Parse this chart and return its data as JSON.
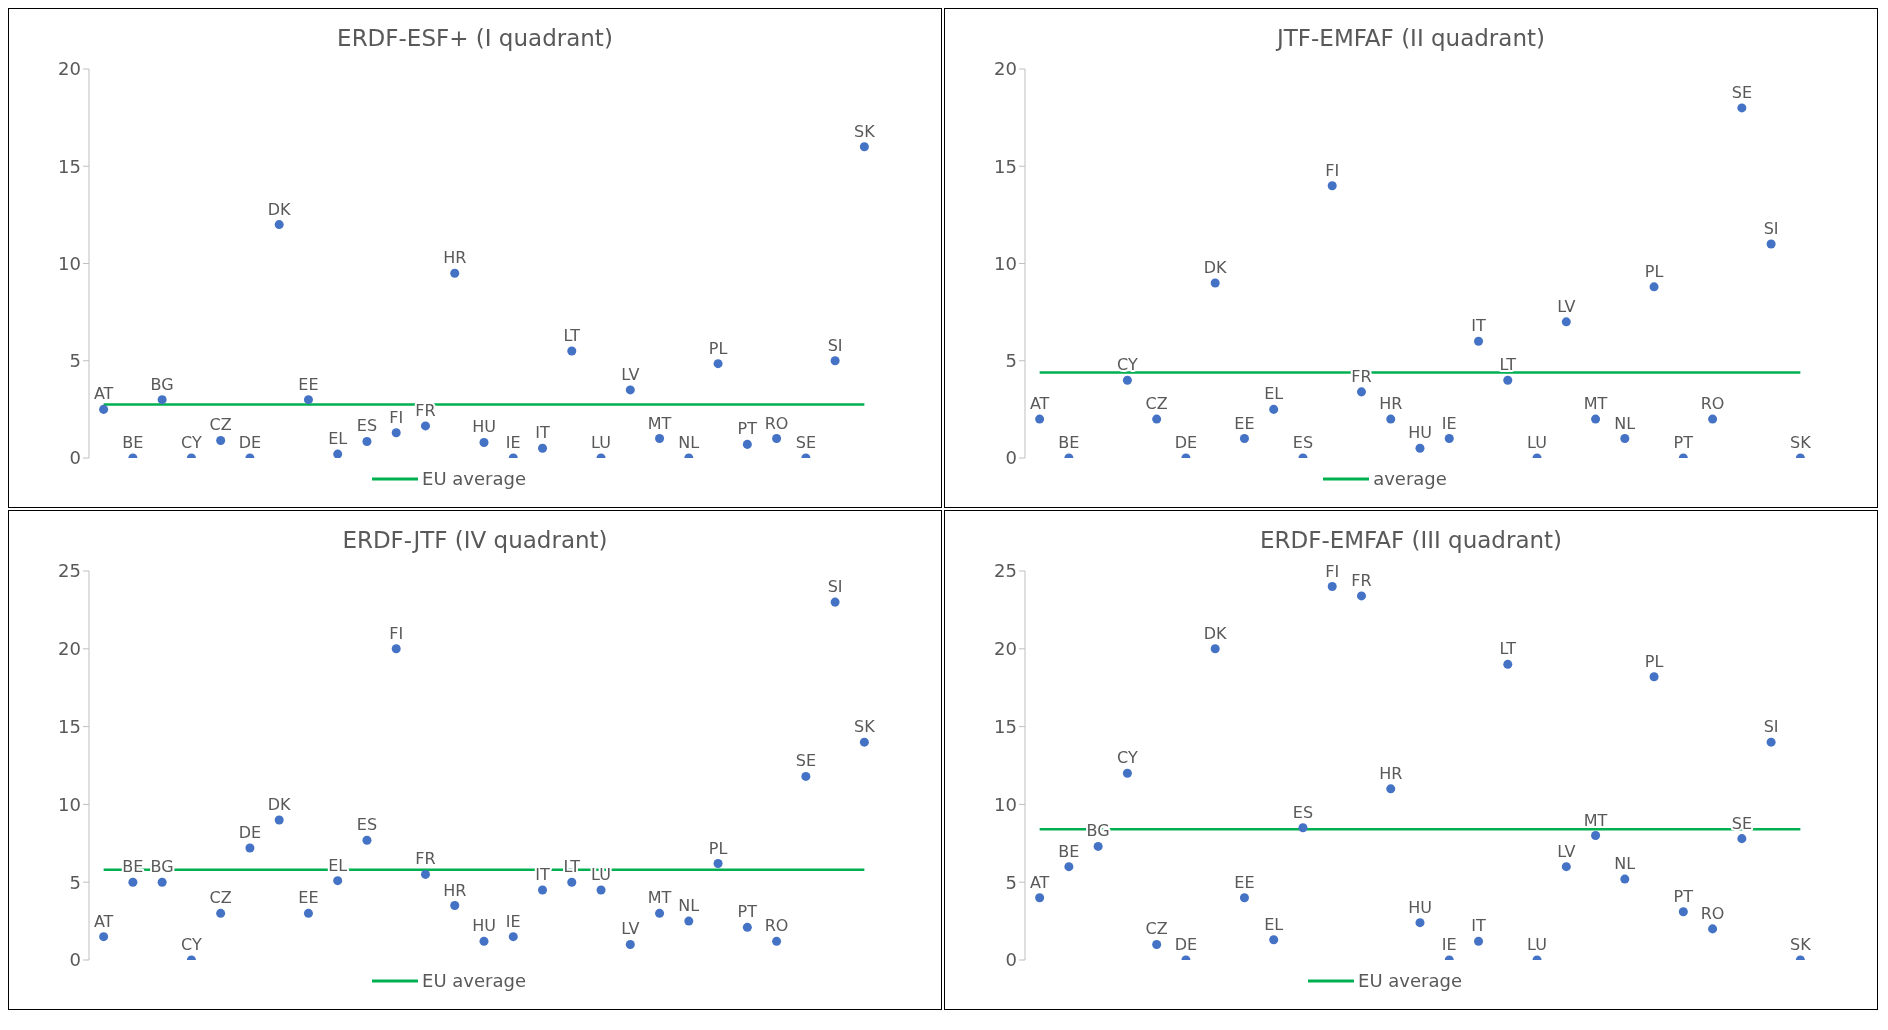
{
  "chart_data": [
    {
      "type": "scatter",
      "title": "ERDF-ESF+ (I quadrant)",
      "categories": [
        "AT",
        "BE",
        "BG",
        "CY",
        "CZ",
        "DE",
        "DK",
        "EE",
        "EL",
        "ES",
        "FI",
        "FR",
        "HR",
        "HU",
        "IE",
        "IT",
        "LT",
        "LU",
        "LV",
        "MT",
        "NL",
        "PL",
        "PT",
        "RO",
        "SE",
        "SI",
        "SK"
      ],
      "ylim": [
        0,
        20
      ],
      "yticks": [
        0,
        5,
        10,
        15,
        20
      ],
      "marker": "circle",
      "legend": "bottom",
      "tick_labels": "y",
      "series": [
        {
          "color": "#4472c4",
          "values": [
            2.5,
            0,
            3,
            0,
            0.9,
            0,
            12,
            3,
            0.2,
            0.85,
            1.3,
            1.65,
            9.5,
            0.8,
            0,
            0.5,
            5.5,
            0,
            3.5,
            1,
            0,
            4.85,
            0.7,
            1,
            0,
            5,
            16
          ]
        },
        {
          "type": "line",
          "name": "EU average",
          "marker": "none",
          "color": "#00b050",
          "values": [
            2.75,
            2.75,
            2.75,
            2.75,
            2.75,
            2.75,
            2.75,
            2.75,
            2.75,
            2.75,
            2.75,
            2.75,
            2.75,
            2.75,
            2.75,
            2.75,
            2.75,
            2.75,
            2.75,
            2.75,
            2.75,
            2.75,
            2.75,
            2.75,
            2.75,
            2.75,
            2.75
          ]
        }
      ]
    },
    {
      "type": "scatter",
      "title": "JTF-EMFAF (II quadrant)",
      "categories": [
        "AT",
        "BE",
        null,
        "CY",
        "CZ",
        "DE",
        "DK",
        "EE",
        "EL",
        "ES",
        "FI",
        "FR",
        "HR",
        "HU",
        "IE",
        "IT",
        "LT",
        "LU",
        "LV",
        "MT",
        "NL",
        "PL",
        "PT",
        "RO",
        "SE",
        "SI",
        "SK"
      ],
      "ylim": [
        0,
        20
      ],
      "yticks": [
        0,
        5,
        10,
        15,
        20
      ],
      "marker": "circle",
      "legend": "bottom",
      "tick_labels": "y",
      "series": [
        {
          "color": "#4472c4",
          "values": [
            2,
            0,
            null,
            4,
            2,
            0,
            9,
            1,
            2.5,
            0,
            14,
            3.4,
            2,
            0.5,
            1,
            6,
            4,
            0,
            7,
            2,
            1,
            8.8,
            0,
            2,
            18,
            11,
            0
          ]
        },
        {
          "type": "line",
          "name": "average",
          "marker": "none",
          "color": "#00b050",
          "values": [
            4.4,
            4.4,
            4.4,
            4.4,
            4.4,
            4.4,
            4.4,
            4.4,
            4.4,
            4.4,
            4.4,
            4.4,
            4.4,
            4.4,
            4.4,
            4.4,
            4.4,
            4.4,
            4.4,
            4.4,
            4.4,
            4.4,
            4.4,
            4.4,
            4.4,
            4.4,
            4.4
          ]
        }
      ]
    },
    {
      "type": "scatter",
      "title": "ERDF-JTF (IV quadrant)",
      "categories": [
        "AT",
        "BE",
        "BG",
        "CY",
        "CZ",
        "DE",
        "DK",
        "EE",
        "EL",
        "ES",
        "FI",
        "FR",
        "HR",
        "HU",
        "IE",
        "IT",
        "LT",
        "LU",
        "LV",
        "MT",
        "NL",
        "PL",
        "PT",
        "RO",
        "SE",
        "SI",
        "SK"
      ],
      "ylim": [
        0,
        25
      ],
      "yticks": [
        0,
        5,
        10,
        15,
        20,
        25
      ],
      "marker": "circle",
      "legend": "bottom",
      "tick_labels": "y",
      "series": [
        {
          "color": "#4472c4",
          "values": [
            1.5,
            5,
            5,
            0,
            3,
            7.2,
            9,
            3,
            5.1,
            7.7,
            20,
            5.5,
            3.5,
            1.2,
            1.5,
            4.5,
            5,
            4.5,
            1,
            3,
            2.5,
            6.2,
            2.1,
            1.2,
            11.8,
            23,
            14
          ]
        },
        {
          "type": "line",
          "name": "EU average",
          "marker": "none",
          "color": "#00b050",
          "values": [
            5.8,
            5.8,
            5.8,
            5.8,
            5.8,
            5.8,
            5.8,
            5.8,
            5.8,
            5.8,
            5.8,
            5.8,
            5.8,
            5.8,
            5.8,
            5.8,
            5.8,
            5.8,
            5.8,
            5.8,
            5.8,
            5.8,
            5.8,
            5.8,
            5.8,
            5.8,
            5.8
          ]
        }
      ]
    },
    {
      "type": "scatter",
      "title": "ERDF-EMFAF (III quadrant)",
      "categories": [
        "AT",
        "BE",
        "BG",
        "CY",
        "CZ",
        "DE",
        "DK",
        "EE",
        "EL",
        "ES",
        "FI",
        "FR",
        "HR",
        "HU",
        "IE",
        "IT",
        "LT",
        "LU",
        "LV",
        "MT",
        "NL",
        "PL",
        "PT",
        "RO",
        "SE",
        "SI",
        "SK"
      ],
      "ylim": [
        0,
        25
      ],
      "yticks": [
        0,
        5,
        10,
        15,
        20,
        25
      ],
      "marker": "circle",
      "legend": "bottom",
      "tick_labels": "y",
      "series": [
        {
          "color": "#4472c4",
          "values": [
            4,
            6,
            7.3,
            12,
            1,
            0,
            20,
            4,
            1.3,
            8.5,
            24,
            23.4,
            11,
            2.4,
            0,
            1.2,
            19,
            0,
            6,
            8,
            5.2,
            18.2,
            3.1,
            2,
            7.8,
            14,
            0
          ]
        },
        {
          "type": "line",
          "name": "EU average",
          "marker": "none",
          "color": "#00b050",
          "values": [
            8.4,
            8.4,
            8.4,
            8.4,
            8.4,
            8.4,
            8.4,
            8.4,
            8.4,
            8.4,
            8.4,
            8.4,
            8.4,
            8.4,
            8.4,
            8.4,
            8.4,
            8.4,
            8.4,
            8.4,
            8.4,
            8.4,
            8.4,
            8.4,
            8.4,
            8.4,
            8.4
          ]
        }
      ]
    }
  ]
}
